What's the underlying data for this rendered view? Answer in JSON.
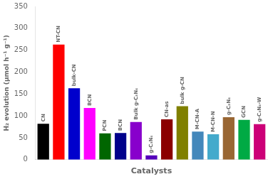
{
  "chart_data": {
    "type": "bar",
    "categories": [
      "CN",
      "NT-CN",
      "bulk-CN",
      "BCN",
      "PCN",
      "BCN",
      "Bulk g-C₃N₄",
      "g-C₃N₄",
      "CN-as",
      "bulk g-CN",
      "M-CN-A",
      "M-CN-N",
      "g-C₃N₄",
      "GCN",
      "g-C₃N₄-W"
    ],
    "values": [
      82,
      263,
      163,
      118,
      60,
      61,
      86,
      10,
      92,
      122,
      64,
      58,
      97,
      91,
      81
    ],
    "colors": [
      "#000000",
      "#ff0000",
      "#0000cc",
      "#ff00ff",
      "#006600",
      "#00008b",
      "#8800cc",
      "#5500bb",
      "#8b0000",
      "#808000",
      "#4488bb",
      "#44aacc",
      "#996633",
      "#00aa44",
      "#cc0077"
    ],
    "xlabel": "Catalysts",
    "ylabel": "H₂ evolution (μmol h⁻¹ g⁻¹)",
    "ylim": [
      0,
      350
    ],
    "yticks": [
      0,
      50,
      100,
      150,
      200,
      250,
      300,
      350
    ],
    "grid": false,
    "tick_labels": "y"
  }
}
